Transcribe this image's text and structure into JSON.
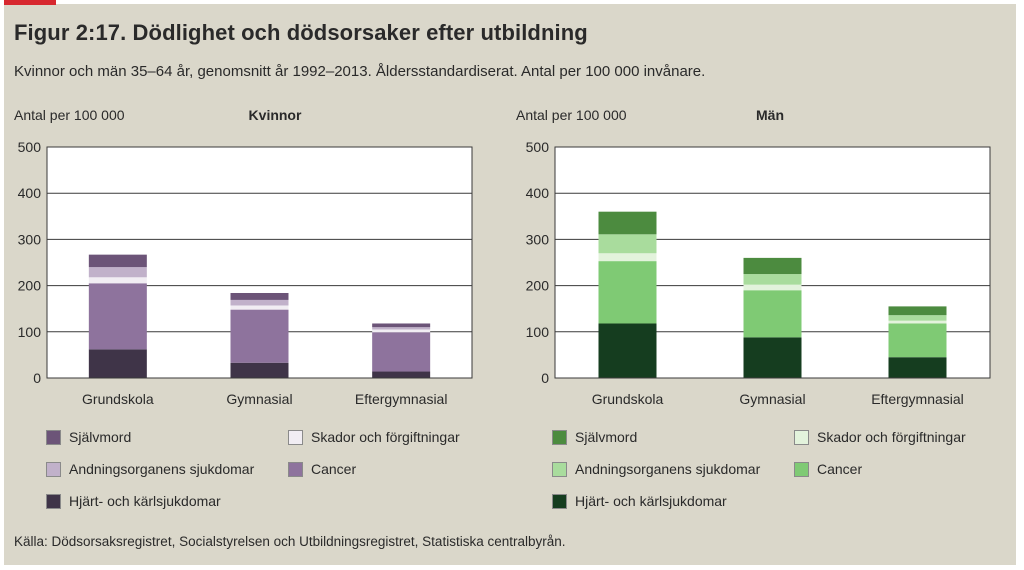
{
  "figure": {
    "title": "Figur 2:17. Dödlighet och dödsorsaker efter utbildning",
    "subtitle": "Kvinnor och män 35–64 år, genomsnitt år 1992–2013. Åldersstandardiserat. Antal per 100 000 invånare.",
    "source": "Källa: Dödsorsaksregistret, Socialstyrelsen och Utbildningsregistret, Statistiska centralbyrån."
  },
  "chart_data": [
    {
      "type": "bar",
      "stacked": true,
      "title": "Kvinnor",
      "ylabel": "Antal per 100 000",
      "ylim": [
        0,
        500
      ],
      "yticks": [
        0,
        100,
        200,
        300,
        400,
        500
      ],
      "categories": [
        "Grundskola",
        "Gymnasial",
        "Eftergymnasial"
      ],
      "series": [
        {
          "name": "Hjärt- och kärlsjukdomar",
          "color": "#3f3448",
          "values": [
            62,
            33,
            14
          ]
        },
        {
          "name": "Cancer",
          "color": "#8e739d",
          "values": [
            143,
            115,
            85
          ]
        },
        {
          "name": "Skador och förgiftningar",
          "color": "#f1edf3",
          "values": [
            13,
            9,
            6
          ]
        },
        {
          "name": "Andningsorganens sjukdomar",
          "color": "#c1b1ca",
          "values": [
            22,
            12,
            5
          ]
        },
        {
          "name": "Självmord",
          "color": "#6c5478",
          "values": [
            27,
            15,
            8
          ]
        }
      ],
      "legend": [
        {
          "name": "Självmord",
          "color": "#6c5478"
        },
        {
          "name": "Skador och förgiftningar",
          "color": "#f1edf3"
        },
        {
          "name": "Andningsorganens sjukdomar",
          "color": "#c1b1ca"
        },
        {
          "name": "Cancer",
          "color": "#8e739d"
        },
        {
          "name": "Hjärt- och kärlsjukdomar",
          "color": "#3f3448"
        }
      ],
      "legend_position": "bottom"
    },
    {
      "type": "bar",
      "stacked": true,
      "title": "Män",
      "ylabel": "Antal per 100 000",
      "ylim": [
        0,
        500
      ],
      "yticks": [
        0,
        100,
        200,
        300,
        400,
        500
      ],
      "categories": [
        "Grundskola",
        "Gymnasial",
        "Eftergymnasial"
      ],
      "series": [
        {
          "name": "Hjärt- och kärlsjukdomar",
          "color": "#153d1f",
          "values": [
            118,
            88,
            45
          ]
        },
        {
          "name": "Cancer",
          "color": "#7fca74",
          "values": [
            135,
            102,
            73
          ]
        },
        {
          "name": "Skador och förgiftningar",
          "color": "#e3f3dc",
          "values": [
            17,
            12,
            6
          ]
        },
        {
          "name": "Andningsorganens sjukdomar",
          "color": "#a9dc9d",
          "values": [
            41,
            23,
            12
          ]
        },
        {
          "name": "Självmord",
          "color": "#4c8b3f",
          "values": [
            49,
            35,
            19
          ]
        }
      ],
      "legend": [
        {
          "name": "Självmord",
          "color": "#4c8b3f"
        },
        {
          "name": "Skador och förgiftningar",
          "color": "#e3f3dc"
        },
        {
          "name": "Andningsorganens sjukdomar",
          "color": "#a9dc9d"
        },
        {
          "name": "Cancer",
          "color": "#7fca74"
        },
        {
          "name": "Hjärt- och kärlsjukdomar",
          "color": "#153d1f"
        }
      ],
      "legend_position": "bottom"
    }
  ]
}
